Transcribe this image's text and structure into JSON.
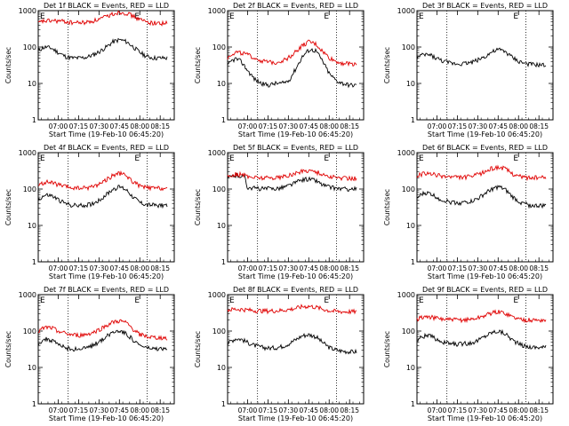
{
  "chart_data": [
    {
      "type": "line",
      "title": "Det 1f BLACK = Events, RED = LLD",
      "ylabel": "Counts/sec",
      "xlabel": "Start Time (19-Feb-10 06:45:20)",
      "yscale": "log",
      "ylim": [
        1,
        1000
      ],
      "xlim_minutes_after_start": [
        0,
        100
      ],
      "x_tick_labels": [
        "07:00",
        "07:15",
        "07:30",
        "07:45",
        "08:00",
        "08:15"
      ],
      "y_tick_labels": [
        "1",
        "10",
        "100",
        "1000"
      ],
      "markers": [
        "E",
        "E"
      ],
      "series": [
        {
          "name": "Events",
          "color": "#000000",
          "x": [
            0,
            3,
            6,
            10,
            15,
            20,
            25,
            30,
            35,
            40,
            45,
            50,
            55,
            60,
            65,
            70,
            75,
            80,
            85,
            90,
            95
          ],
          "values": [
            78,
            95,
            100,
            92,
            70,
            55,
            50,
            50,
            52,
            60,
            75,
            100,
            140,
            160,
            140,
            100,
            70,
            55,
            50,
            50,
            50
          ]
        },
        {
          "name": "LLD",
          "color": "#e00000",
          "x": [
            0,
            3,
            6,
            10,
            15,
            20,
            25,
            30,
            35,
            40,
            45,
            50,
            55,
            60,
            65,
            70,
            75,
            80,
            85,
            90,
            95
          ],
          "values": [
            450,
            510,
            520,
            530,
            520,
            500,
            470,
            470,
            475,
            520,
            580,
            680,
            820,
            920,
            860,
            700,
            560,
            490,
            460,
            450,
            450
          ]
        }
      ]
    },
    {
      "type": "line",
      "title": "Det 2f BLACK = Events, RED = LLD",
      "ylabel": "Counts/sec",
      "xlabel": "Start Time (19-Feb-10 06:45:20)",
      "yscale": "log",
      "ylim": [
        1,
        1000
      ],
      "xlim_minutes_after_start": [
        0,
        100
      ],
      "x_tick_labels": [
        "07:00",
        "07:15",
        "07:30",
        "07:45",
        "08:00",
        "08:15"
      ],
      "y_tick_labels": [
        "1",
        "10",
        "100",
        "1000"
      ],
      "markers": [
        "E",
        "E"
      ],
      "series": [
        {
          "name": "Events",
          "color": "#000000",
          "x": [
            0,
            3,
            6,
            10,
            15,
            20,
            25,
            30,
            35,
            40,
            45,
            50,
            55,
            60,
            65,
            70,
            75,
            80,
            85,
            90,
            95
          ],
          "values": [
            30,
            42,
            48,
            40,
            22,
            13,
            10,
            9,
            10,
            10,
            12,
            25,
            55,
            85,
            80,
            40,
            18,
            12,
            10,
            9,
            9
          ]
        },
        {
          "name": "LLD",
          "color": "#e00000",
          "x": [
            0,
            3,
            6,
            10,
            15,
            20,
            25,
            30,
            35,
            40,
            45,
            50,
            55,
            60,
            65,
            70,
            75,
            80,
            85,
            90,
            95
          ],
          "values": [
            50,
            65,
            72,
            70,
            60,
            50,
            42,
            38,
            38,
            42,
            52,
            75,
            110,
            140,
            120,
            75,
            50,
            40,
            36,
            35,
            35
          ]
        }
      ]
    },
    {
      "type": "line",
      "title": "Det 3f BLACK = Events, RED = LLD",
      "ylabel": "Counts/sec",
      "xlabel": "Start Time (19-Feb-10 06:45:20)",
      "yscale": "log",
      "ylim": [
        1,
        1000
      ],
      "xlim_minutes_after_start": [
        0,
        100
      ],
      "x_tick_labels": [
        "07:00",
        "07:15",
        "07:30",
        "07:45",
        "08:00",
        "08:15"
      ],
      "y_tick_labels": [
        "1",
        "10",
        "100",
        "1000"
      ],
      "markers": [
        "E",
        "E"
      ],
      "series": [
        {
          "name": "Events",
          "color": "#000000",
          "x": [
            0,
            3,
            6,
            10,
            15,
            20,
            25,
            30,
            35,
            40,
            45,
            50,
            55,
            60,
            65,
            70,
            75,
            80,
            85,
            90,
            95
          ],
          "values": [
            50,
            58,
            62,
            60,
            48,
            40,
            36,
            35,
            36,
            38,
            45,
            55,
            72,
            85,
            75,
            52,
            40,
            35,
            33,
            32,
            32
          ]
        }
      ]
    },
    {
      "type": "line",
      "title": "Det 4f BLACK = Events, RED = LLD",
      "ylabel": "Counts/sec",
      "xlabel": "Start Time (19-Feb-10 06:45:20)",
      "yscale": "log",
      "ylim": [
        1,
        1000
      ],
      "xlim_minutes_after_start": [
        0,
        100
      ],
      "x_tick_labels": [
        "07:00",
        "07:15",
        "07:30",
        "07:45",
        "08:00",
        "08:15"
      ],
      "y_tick_labels": [
        "1",
        "10",
        "100",
        "1000"
      ],
      "markers": [
        "E",
        "E"
      ],
      "series": [
        {
          "name": "Events",
          "color": "#000000",
          "x": [
            0,
            3,
            6,
            10,
            15,
            20,
            25,
            30,
            35,
            40,
            45,
            50,
            55,
            60,
            65,
            70,
            75,
            80,
            85,
            90,
            95
          ],
          "values": [
            50,
            62,
            68,
            65,
            50,
            40,
            36,
            35,
            36,
            40,
            50,
            70,
            100,
            115,
            95,
            60,
            42,
            37,
            36,
            36,
            36
          ]
        },
        {
          "name": "LLD",
          "color": "#e00000",
          "x": [
            0,
            3,
            6,
            10,
            15,
            20,
            25,
            30,
            35,
            40,
            45,
            50,
            55,
            60,
            65,
            70,
            75,
            80,
            85,
            90,
            95
          ],
          "values": [
            120,
            145,
            155,
            150,
            130,
            115,
            108,
            105,
            108,
            118,
            140,
            180,
            240,
            270,
            230,
            155,
            120,
            108,
            105,
            105,
            105
          ]
        }
      ]
    },
    {
      "type": "line",
      "title": "Det 5f BLACK = Events, RED = LLD",
      "ylabel": "Counts/sec",
      "xlabel": "Start Time (19-Feb-10 06:45:20)",
      "yscale": "log",
      "ylim": [
        1,
        1000
      ],
      "xlim_minutes_after_start": [
        0,
        100
      ],
      "x_tick_labels": [
        "07:00",
        "07:15",
        "07:30",
        "07:45",
        "08:00",
        "08:15"
      ],
      "y_tick_labels": [
        "1",
        "10",
        "100",
        "1000"
      ],
      "markers": [
        "E",
        "E"
      ],
      "series": [
        {
          "name": "Events",
          "color": "#000000",
          "x": [
            0,
            3,
            6,
            10,
            13,
            14,
            15,
            20,
            25,
            30,
            35,
            40,
            45,
            50,
            55,
            60,
            65,
            70,
            75,
            80,
            85,
            90,
            95
          ],
          "values": [
            200,
            225,
            235,
            230,
            215,
            120,
            112,
            105,
            102,
            102,
            104,
            110,
            125,
            150,
            180,
            190,
            170,
            130,
            112,
            105,
            100,
            100,
            100
          ]
        },
        {
          "name": "LLD",
          "color": "#e00000",
          "x": [
            0,
            3,
            6,
            10,
            13,
            14,
            15,
            20,
            25,
            30,
            35,
            40,
            45,
            50,
            55,
            60,
            65,
            70,
            75,
            80,
            85,
            90,
            95
          ],
          "values": [
            220,
            245,
            255,
            250,
            235,
            225,
            220,
            210,
            205,
            205,
            208,
            215,
            235,
            270,
            310,
            330,
            300,
            250,
            220,
            205,
            200,
            198,
            198
          ]
        }
      ]
    },
    {
      "type": "line",
      "title": "Det 6f BLACK = Events, RED = LLD",
      "ylabel": "Counts/sec",
      "xlabel": "Start Time (19-Feb-10 06:45:20)",
      "yscale": "log",
      "ylim": [
        1,
        1000
      ],
      "xlim_minutes_after_start": [
        0,
        100
      ],
      "x_tick_labels": [
        "07:00",
        "07:15",
        "07:30",
        "07:45",
        "08:00",
        "08:15"
      ],
      "y_tick_labels": [
        "1",
        "10",
        "100",
        "1000"
      ],
      "markers": [
        "E",
        "E"
      ],
      "series": [
        {
          "name": "Events",
          "color": "#000000",
          "x": [
            0,
            3,
            6,
            10,
            15,
            20,
            25,
            30,
            35,
            40,
            45,
            50,
            55,
            60,
            65,
            70,
            75,
            80,
            85,
            90,
            95
          ],
          "values": [
            55,
            70,
            78,
            75,
            58,
            48,
            44,
            42,
            43,
            46,
            55,
            75,
            100,
            115,
            95,
            62,
            45,
            38,
            35,
            35,
            35
          ]
        },
        {
          "name": "LLD",
          "color": "#e00000",
          "x": [
            0,
            3,
            6,
            10,
            15,
            20,
            25,
            30,
            35,
            40,
            45,
            50,
            55,
            60,
            65,
            70,
            75,
            80,
            85,
            90,
            95
          ],
          "values": [
            230,
            255,
            265,
            260,
            240,
            225,
            215,
            210,
            212,
            222,
            250,
            300,
            370,
            400,
            360,
            270,
            225,
            210,
            205,
            205,
            205
          ]
        }
      ]
    },
    {
      "type": "line",
      "title": "Det 7f BLACK = Events, RED = LLD",
      "ylabel": "Counts/sec",
      "xlabel": "Start Time (19-Feb-10 06:45:20)",
      "yscale": "log",
      "ylim": [
        1,
        1000
      ],
      "xlim_minutes_after_start": [
        0,
        100
      ],
      "x_tick_labels": [
        "07:00",
        "07:15",
        "07:30",
        "07:45",
        "08:00",
        "08:15"
      ],
      "y_tick_labels": [
        "1",
        "10",
        "100",
        "1000"
      ],
      "markers": [
        "E",
        "E"
      ],
      "series": [
        {
          "name": "Events",
          "color": "#000000",
          "x": [
            0,
            3,
            6,
            10,
            15,
            20,
            25,
            30,
            35,
            40,
            45,
            50,
            55,
            60,
            65,
            70,
            75,
            80,
            85,
            90,
            95
          ],
          "values": [
            45,
            55,
            60,
            55,
            42,
            35,
            32,
            32,
            34,
            40,
            52,
            70,
            95,
            105,
            85,
            55,
            40,
            34,
            32,
            32,
            32
          ]
        },
        {
          "name": "LLD",
          "color": "#e00000",
          "x": [
            0,
            3,
            6,
            10,
            15,
            20,
            25,
            30,
            35,
            40,
            45,
            50,
            55,
            60,
            65,
            70,
            75,
            80,
            85,
            90,
            95
          ],
          "values": [
            95,
            115,
            125,
            120,
            100,
            85,
            78,
            76,
            80,
            90,
            110,
            140,
            175,
            190,
            165,
            110,
            80,
            70,
            66,
            65,
            65
          ]
        }
      ]
    },
    {
      "type": "line",
      "title": "Det 8f BLACK = Events, RED = LLD",
      "ylabel": "Counts/sec",
      "xlabel": "Start Time (19-Feb-10 06:45:20)",
      "yscale": "log",
      "ylim": [
        1,
        1000
      ],
      "xlim_minutes_after_start": [
        0,
        100
      ],
      "x_tick_labels": [
        "07:00",
        "07:15",
        "07:30",
        "07:45",
        "08:00",
        "08:15"
      ],
      "y_tick_labels": [
        "1",
        "10",
        "100",
        "1000"
      ],
      "markers": [
        "E",
        "E"
      ],
      "series": [
        {
          "name": "Events",
          "color": "#000000",
          "x": [
            0,
            3,
            6,
            10,
            15,
            20,
            25,
            30,
            35,
            40,
            45,
            50,
            55,
            60,
            65,
            70,
            75,
            80,
            85,
            90,
            95
          ],
          "values": [
            45,
            55,
            62,
            60,
            48,
            40,
            36,
            34,
            35,
            38,
            45,
            58,
            75,
            80,
            70,
            48,
            35,
            30,
            28,
            27,
            27
          ]
        },
        {
          "name": "LLD",
          "color": "#e00000",
          "x": [
            0,
            3,
            6,
            10,
            15,
            20,
            25,
            30,
            35,
            40,
            45,
            50,
            55,
            60,
            65,
            70,
            75,
            80,
            85,
            90,
            95
          ],
          "values": [
            380,
            390,
            400,
            395,
            380,
            365,
            360,
            358,
            360,
            370,
            390,
            420,
            470,
            480,
            450,
            400,
            360,
            345,
            340,
            340,
            340
          ]
        }
      ]
    },
    {
      "type": "line",
      "title": "Det 9f BLACK = Events, RED = LLD",
      "ylabel": "Counts/sec",
      "xlabel": "Start Time (19-Feb-10 06:45:20)",
      "yscale": "log",
      "ylim": [
        1,
        1000
      ],
      "xlim_minutes_after_start": [
        0,
        100
      ],
      "x_tick_labels": [
        "07:00",
        "07:15",
        "07:30",
        "07:45",
        "08:00",
        "08:15"
      ],
      "y_tick_labels": [
        "1",
        "10",
        "100",
        "1000"
      ],
      "markers": [
        "E",
        "E"
      ],
      "series": [
        {
          "name": "Events",
          "color": "#000000",
          "x": [
            0,
            3,
            6,
            10,
            15,
            20,
            25,
            30,
            35,
            40,
            45,
            50,
            55,
            60,
            65,
            70,
            75,
            80,
            85,
            90,
            95
          ],
          "values": [
            55,
            68,
            75,
            72,
            58,
            48,
            45,
            44,
            45,
            48,
            56,
            72,
            92,
            100,
            85,
            58,
            44,
            38,
            36,
            36,
            36
          ]
        },
        {
          "name": "LLD",
          "color": "#e00000",
          "x": [
            0,
            3,
            6,
            10,
            15,
            20,
            25,
            30,
            35,
            40,
            45,
            50,
            55,
            60,
            65,
            70,
            75,
            80,
            85,
            90,
            95
          ],
          "values": [
            210,
            235,
            245,
            240,
            225,
            210,
            205,
            202,
            205,
            212,
            232,
            270,
            320,
            340,
            310,
            250,
            215,
            205,
            200,
            200,
            200
          ]
        }
      ]
    }
  ]
}
